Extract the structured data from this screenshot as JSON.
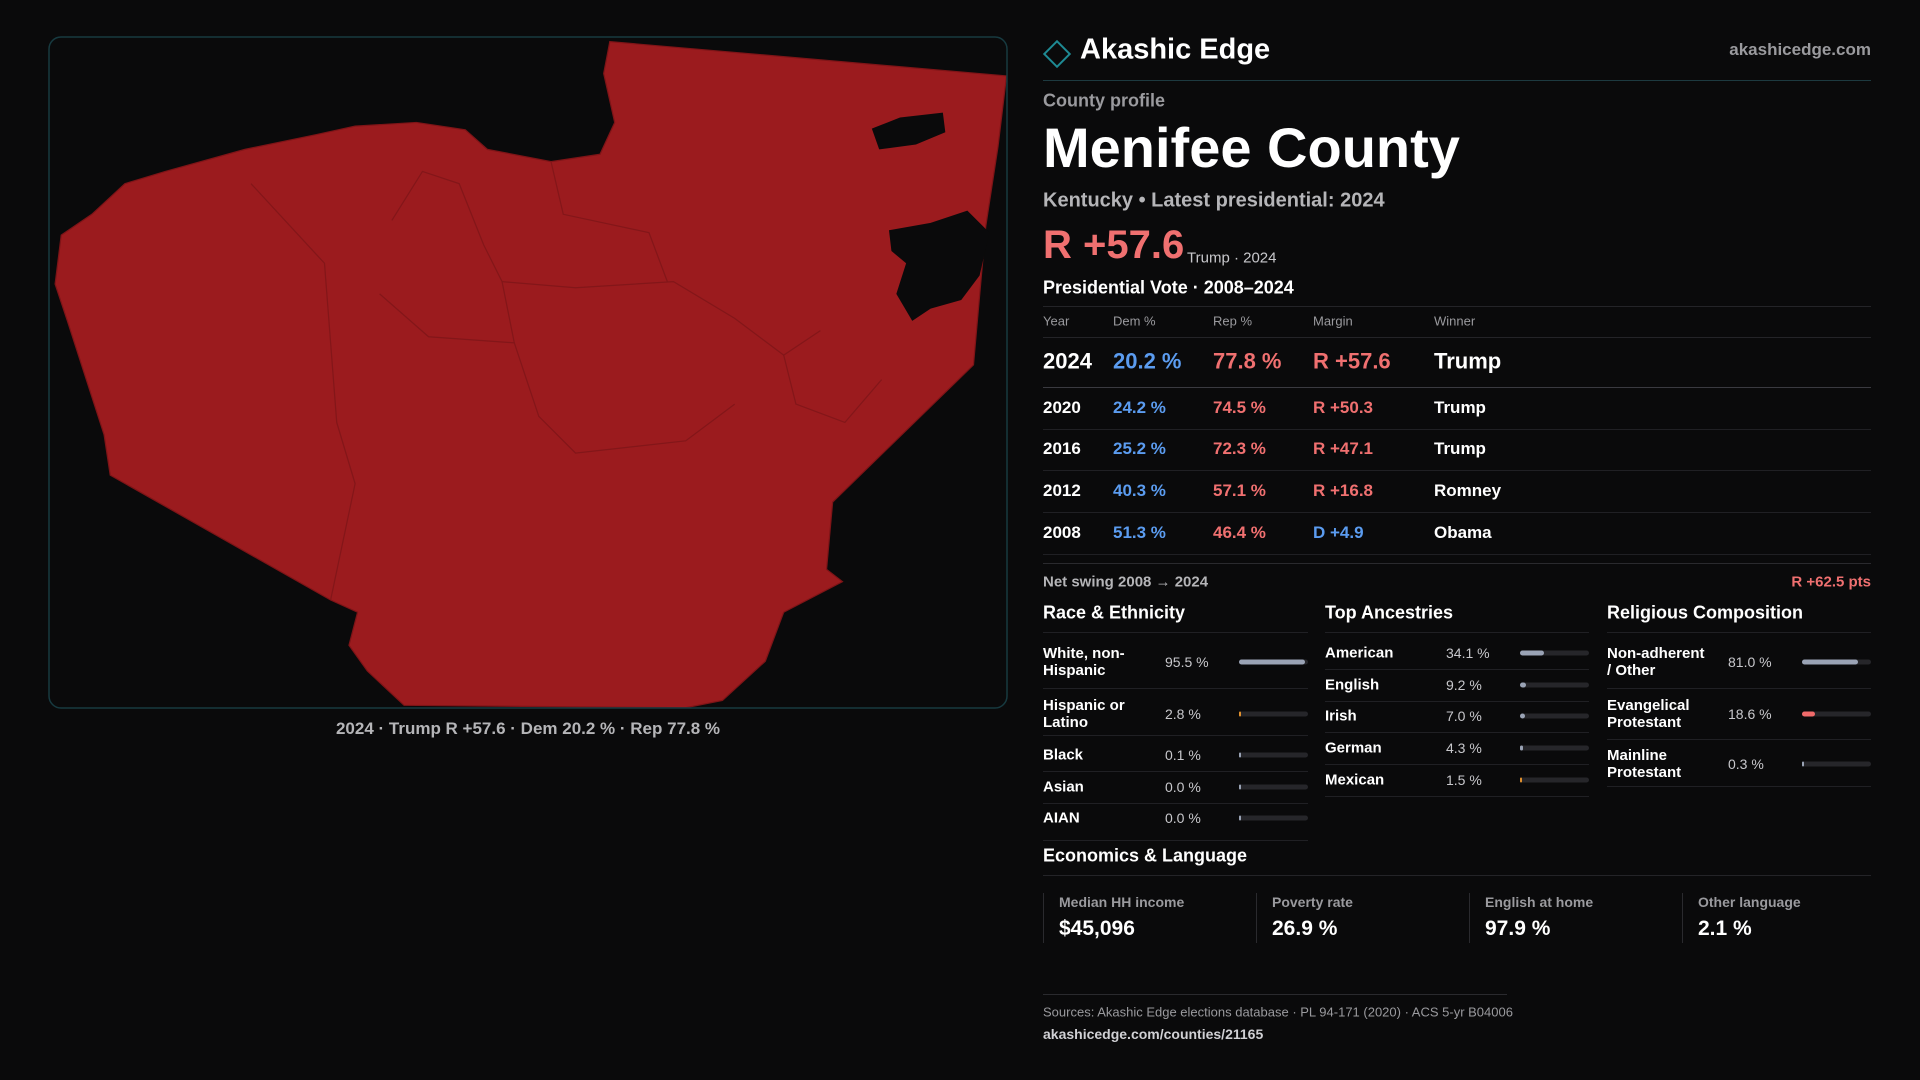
{
  "header": {
    "brand": "Akashic Edge",
    "site": "akashicedge.com"
  },
  "profile": {
    "eyebrow": "County profile",
    "title": "Menifee County",
    "subtitle": "Kentucky • Latest presidential: 2024",
    "margin": "R +57.6",
    "margin_note": "Trump · 2024"
  },
  "map": {
    "caption": "2024 · Trump R +57.6 · Dem 20.2 % · Rep 77.8 %"
  },
  "vote_table": {
    "title": "Presidential Vote · 2008–2024",
    "columns": [
      "Year",
      "Dem %",
      "Rep %",
      "Margin",
      "Winner"
    ],
    "rows": [
      [
        "2024",
        "20.2 %",
        "77.8 %",
        "R +57.6",
        "Trump"
      ],
      [
        "2020",
        "24.2 %",
        "74.5 %",
        "R +50.3",
        "Trump"
      ],
      [
        "2016",
        "25.2 %",
        "72.3 %",
        "R +47.1",
        "Trump"
      ],
      [
        "2012",
        "40.3 %",
        "57.1 %",
        "R +16.8",
        "Romney"
      ],
      [
        "2008",
        "51.3 %",
        "46.4 %",
        "D +4.9",
        "Obama"
      ]
    ]
  },
  "swing": {
    "label": "Net swing 2008 → 2024",
    "value": "R +62.5 pts"
  },
  "race": {
    "title": "Race & Ethnicity",
    "rows": [
      {
        "name": "White, non-Hispanic",
        "value": 95.5,
        "value_label": "95.5 %",
        "color": "#9aa3b5"
      },
      {
        "name": "Hispanic or Latino",
        "value": 2.8,
        "value_label": "2.8 %",
        "color": "#e0902e"
      },
      {
        "name": "Black",
        "value": 0.1,
        "value_label": "0.1 %",
        "color": "#9aa3b5"
      },
      {
        "name": "Asian",
        "value": 0.0,
        "value_label": "0.0 %",
        "color": "#9aa3b5"
      },
      {
        "name": "AIAN",
        "value": 0.0,
        "value_label": "0.0 %",
        "color": "#9aa3b5"
      }
    ]
  },
  "ancestry": {
    "title": "Top Ancestries",
    "rows": [
      {
        "name": "American",
        "value": 34.1,
        "value_label": "34.1 %",
        "color": "#9aa3b5"
      },
      {
        "name": "English",
        "value": 9.2,
        "value_label": "9.2 %",
        "color": "#9aa3b5"
      },
      {
        "name": "Irish",
        "value": 7.0,
        "value_label": "7.0 %",
        "color": "#9aa3b5"
      },
      {
        "name": "German",
        "value": 4.3,
        "value_label": "4.3 %",
        "color": "#9aa3b5"
      },
      {
        "name": "Mexican",
        "value": 1.5,
        "value_label": "1.5 %",
        "color": "#e0902e"
      }
    ]
  },
  "religion": {
    "title": "Religious Composition",
    "rows": [
      {
        "name": "Non-adherent / Other",
        "value": 81.0,
        "value_label": "81.0 %",
        "color": "#9aa3b5"
      },
      {
        "name": "Evangelical Protestant",
        "value": 18.6,
        "value_label": "18.6 %",
        "color": "#f06a6a"
      },
      {
        "name": "Mainline Protestant",
        "value": 0.3,
        "value_label": "0.3 %",
        "color": "#9aa3b5"
      }
    ]
  },
  "economics": {
    "title": "Economics & Language",
    "stats": [
      {
        "label": "Median HH income",
        "value": "$45,096"
      },
      {
        "label": "Poverty rate",
        "value": "26.9 %"
      },
      {
        "label": "English at home",
        "value": "97.9 %"
      },
      {
        "label": "Other language",
        "value": "2.1 %"
      }
    ]
  },
  "footer": {
    "sources": "Sources: Akashic Edge elections database · PL 94-171 (2020) · ACS 5-yr B04006",
    "url": "akashicedge.com/counties/21165"
  }
}
